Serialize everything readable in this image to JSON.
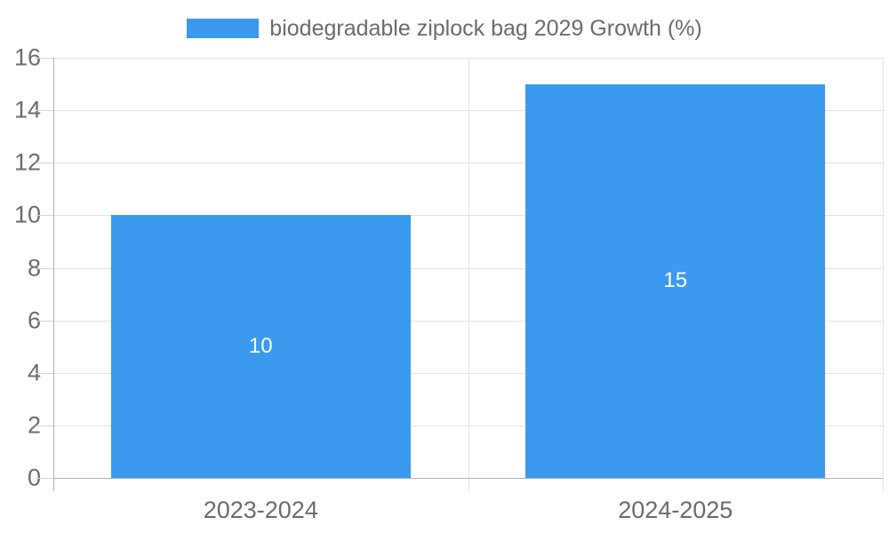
{
  "legend": {
    "label": "biodegradable ziplock bag 2029 Growth (%)",
    "position": "top"
  },
  "chart_data": {
    "type": "bar",
    "title": "",
    "categories": [
      "2023-2024",
      "2024-2025"
    ],
    "series": [
      {
        "name": "biodegradable ziplock bag 2029 Growth (%)",
        "values": [
          10,
          15
        ]
      }
    ],
    "data_labels": [
      "10",
      "15"
    ],
    "ylim": [
      0,
      16
    ],
    "ytick_step": 2,
    "yticks": [
      0,
      2,
      4,
      6,
      8,
      10,
      12,
      14,
      16
    ],
    "grid": true,
    "legend_position": "top"
  },
  "colors": {
    "bar": "#3B99EE",
    "grid": "#E3E3E3",
    "axis": "#B0B0B0",
    "tick_stub": "#D6D6D6",
    "text": "#6B6B6B",
    "bar_label": "#FFFFFF",
    "background": "#FFFFFF"
  }
}
